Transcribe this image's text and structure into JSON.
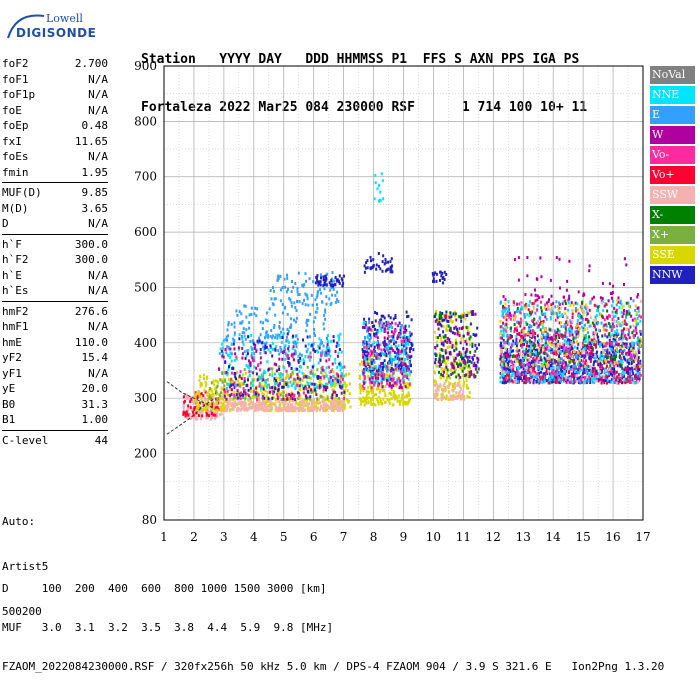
{
  "logo": {
    "line1": "Lowell",
    "line2": "DIGISONDE"
  },
  "header": {
    "line1": "Station   YYYY DAY   DDD HHMMSS P1  FFS S AXN PPS IGA PS",
    "line2": "Fortaleza 2022 Mar25 084 230000 RSF      1 714 100 10+ 11"
  },
  "params": [
    [
      {
        "name": "foF2",
        "value": "2.700"
      },
      {
        "name": "foF1",
        "value": "N/A"
      },
      {
        "name": "foF1p",
        "value": "N/A"
      },
      {
        "name": "foE",
        "value": "N/A"
      },
      {
        "name": "foEp",
        "value": "0.48"
      },
      {
        "name": "fxI",
        "value": "11.65"
      },
      {
        "name": "foEs",
        "value": "N/A"
      },
      {
        "name": "fmin",
        "value": "1.95"
      }
    ],
    [
      {
        "name": "MUF(D)",
        "value": "9.85"
      },
      {
        "name": "M(D)",
        "value": "3.65"
      },
      {
        "name": "D",
        "value": "N/A"
      }
    ],
    [
      {
        "name": "h`F",
        "value": "300.0"
      },
      {
        "name": "h`F2",
        "value": "300.0"
      },
      {
        "name": "h`E",
        "value": "N/A"
      },
      {
        "name": "h`Es",
        "value": "N/A"
      }
    ],
    [
      {
        "name": "hmF2",
        "value": "276.6"
      },
      {
        "name": "hmF1",
        "value": "N/A"
      },
      {
        "name": "hmE",
        "value": "110.0"
      },
      {
        "name": "yF2",
        "value": "15.4"
      },
      {
        "name": "yF1",
        "value": "N/A"
      },
      {
        "name": "yE",
        "value": "20.0"
      },
      {
        "name": "B0",
        "value": "31.3"
      },
      {
        "name": "B1",
        "value": "1.00"
      }
    ],
    [
      {
        "name": "C-level",
        "value": "44"
      }
    ]
  ],
  "auto": {
    "line1": "Auto:",
    "line2": "Artist5",
    "line3": "500200"
  },
  "footer": {
    "line1": "D     100  200  400  600  800 1000 1500 3000 [km]",
    "line2": "MUF   3.0  3.1  3.2  3.5  3.8  4.4  5.9  9.8 [MHz]",
    "line3": "FZAOM_2022084230000.RSF / 320fx256h 50 kHz 5.0 km / DPS-4 FZAOM 904 / 3.9 S 321.6 E   Ion2Png 1.3.20"
  },
  "legend": [
    {
      "label": "NoVal",
      "color": "#808080"
    },
    {
      "label": "NNE",
      "color": "#00e5ff"
    },
    {
      "label": "E",
      "color": "#33a0ff"
    },
    {
      "label": "W",
      "color": "#b000a0"
    },
    {
      "label": "Vo-",
      "color": "#ff2aa0"
    },
    {
      "label": "Vo+",
      "color": "#ff0033"
    },
    {
      "label": "SSW",
      "color": "#f5b0b0"
    },
    {
      "label": "X-",
      "color": "#008000"
    },
    {
      "label": "X+",
      "color": "#7ab040"
    },
    {
      "label": "SSE",
      "color": "#d8d800"
    },
    {
      "label": "NNW",
      "color": "#2020c0"
    }
  ],
  "chart_data": {
    "type": "scatter",
    "title": "",
    "xlabel": "",
    "ylabel": "",
    "xlim": [
      1,
      17
    ],
    "ylim": [
      80,
      900
    ],
    "grid": true,
    "legend_position": "right",
    "x_ticks": [
      1,
      2,
      3,
      4,
      5,
      6,
      7,
      8,
      9,
      10,
      11,
      12,
      13,
      14,
      15,
      16,
      17
    ],
    "y_ticks": [
      80,
      200,
      300,
      400,
      500,
      600,
      700,
      800,
      900
    ],
    "clusters": [
      {
        "series": "SSW",
        "x": [
          1.6,
          3.0
        ],
        "y": [
          265,
          310
        ],
        "n": 160
      },
      {
        "series": "Vo+",
        "x": [
          1.6,
          2.8
        ],
        "y": [
          270,
          315
        ],
        "n": 60
      },
      {
        "series": "SSE",
        "x": [
          2.0,
          7.2
        ],
        "y": [
          280,
          350
        ],
        "n": 500
      },
      {
        "series": "SSW",
        "x": [
          3.0,
          7.0
        ],
        "y": [
          280,
          300
        ],
        "n": 260
      },
      {
        "series": "X+",
        "x": [
          2.5,
          7.0
        ],
        "y": [
          300,
          360
        ],
        "n": 120
      },
      {
        "series": "NNE",
        "x": [
          2.8,
          7.0
        ],
        "y": [
          320,
          420
        ],
        "n": 200
      },
      {
        "series": "E",
        "x": [
          3.0,
          6.5
        ],
        "y": [
          380,
          470
        ],
        "n": 180
      },
      {
        "series": "W",
        "x": [
          2.8,
          7.0
        ],
        "y": [
          300,
          400
        ],
        "n": 120
      },
      {
        "series": "NNW",
        "x": [
          3.0,
          7.0
        ],
        "y": [
          300,
          420
        ],
        "n": 100
      },
      {
        "series": "Vo-",
        "x": [
          3.0,
          7.0
        ],
        "y": [
          300,
          380
        ],
        "n": 60
      },
      {
        "series": "E",
        "x": [
          4.5,
          6.8
        ],
        "y": [
          470,
          530
        ],
        "n": 90
      },
      {
        "series": "NNW",
        "x": [
          6.0,
          7.0
        ],
        "y": [
          505,
          525
        ],
        "n": 50
      },
      {
        "series": "SSE",
        "x": [
          7.5,
          9.2
        ],
        "y": [
          290,
          380
        ],
        "n": 250
      },
      {
        "series": "NNW",
        "x": [
          7.6,
          9.3
        ],
        "y": [
          350,
          460
        ],
        "n": 200
      },
      {
        "series": "E",
        "x": [
          7.6,
          9.2
        ],
        "y": [
          330,
          440
        ],
        "n": 90
      },
      {
        "series": "NNE",
        "x": [
          7.6,
          9.2
        ],
        "y": [
          330,
          440
        ],
        "n": 90
      },
      {
        "series": "W",
        "x": [
          7.6,
          9.2
        ],
        "y": [
          320,
          440
        ],
        "n": 90
      },
      {
        "series": "Vo-",
        "x": [
          7.6,
          9.2
        ],
        "y": [
          320,
          440
        ],
        "n": 60
      },
      {
        "series": "NNW",
        "x": [
          7.6,
          8.6
        ],
        "y": [
          530,
          565
        ],
        "n": 40
      },
      {
        "series": "NNE",
        "x": [
          8.0,
          8.3
        ],
        "y": [
          655,
          710
        ],
        "n": 12
      },
      {
        "series": "SSE",
        "x": [
          10.0,
          11.2
        ],
        "y": [
          300,
          460
        ],
        "n": 200
      },
      {
        "series": "SSW",
        "x": [
          10.0,
          11.0
        ],
        "y": [
          300,
          330
        ],
        "n": 60
      },
      {
        "series": "NNW",
        "x": [
          10.0,
          11.5
        ],
        "y": [
          360,
          460
        ],
        "n": 90
      },
      {
        "series": "X-",
        "x": [
          10.0,
          11.5
        ],
        "y": [
          340,
          460
        ],
        "n": 60
      },
      {
        "series": "W",
        "x": [
          10.0,
          11.5
        ],
        "y": [
          340,
          460
        ],
        "n": 60
      },
      {
        "series": "NNW",
        "x": [
          9.9,
          10.4
        ],
        "y": [
          510,
          535
        ],
        "n": 20
      },
      {
        "series": "NNW",
        "x": [
          12.2,
          16.9
        ],
        "y": [
          330,
          420
        ],
        "n": 700
      },
      {
        "series": "W",
        "x": [
          12.2,
          16.9
        ],
        "y": [
          330,
          490
        ],
        "n": 300
      },
      {
        "series": "E",
        "x": [
          12.2,
          16.9
        ],
        "y": [
          330,
          480
        ],
        "n": 300
      },
      {
        "series": "NNE",
        "x": [
          12.2,
          16.9
        ],
        "y": [
          330,
          480
        ],
        "n": 240
      },
      {
        "series": "Vo-",
        "x": [
          12.2,
          16.9
        ],
        "y": [
          330,
          480
        ],
        "n": 200
      },
      {
        "series": "Vo+",
        "x": [
          12.2,
          16.9
        ],
        "y": [
          330,
          480
        ],
        "n": 150
      },
      {
        "series": "SSE",
        "x": [
          12.2,
          16.9
        ],
        "y": [
          360,
          480
        ],
        "n": 120
      },
      {
        "series": "X-",
        "x": [
          12.2,
          16.9
        ],
        "y": [
          360,
          480
        ],
        "n": 80
      },
      {
        "series": "SSW",
        "x": [
          12.2,
          16.9
        ],
        "y": [
          330,
          480
        ],
        "n": 100
      },
      {
        "series": "W",
        "x": [
          12.5,
          16.5
        ],
        "y": [
          480,
          560
        ],
        "n": 40
      }
    ],
    "profile_curves": [
      {
        "name": "upper",
        "x": [
          1.1,
          1.6,
          2.0,
          2.4,
          2.7
        ],
        "y": [
          330,
          310,
          300,
          290,
          280
        ]
      },
      {
        "name": "lower",
        "x": [
          1.1,
          1.5,
          1.9,
          2.3,
          2.7
        ],
        "y": [
          235,
          250,
          265,
          285,
          300
        ]
      }
    ]
  }
}
